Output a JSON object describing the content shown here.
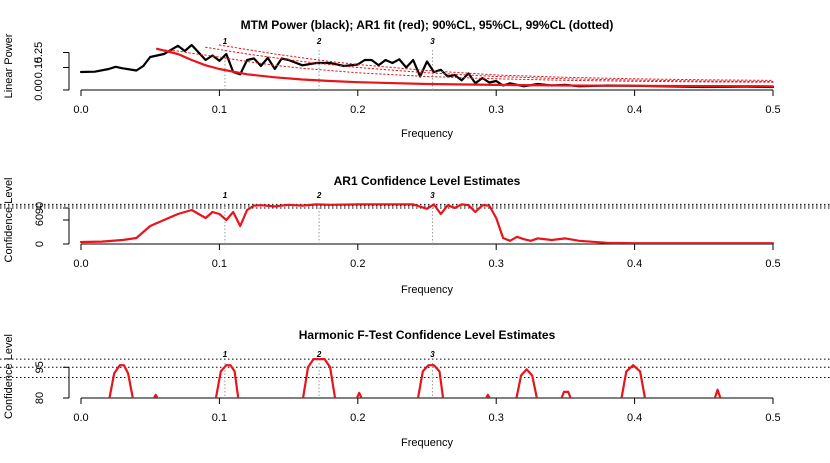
{
  "chart_data": [
    {
      "type": "line",
      "title": "MTM Power (black); AR1 fit (red); 90%CL, 95%CL, 99%CL (dotted)",
      "xlabel": "Frequency",
      "ylabel": "Linear Power",
      "xlim": [
        0,
        0.5
      ],
      "ylim": [
        0,
        0.32
      ],
      "xticks": [
        "0.0",
        "0.1",
        "0.2",
        "0.3",
        "0.4",
        "0.5"
      ],
      "yticks": [
        "0.00",
        "0.15",
        "0.25"
      ],
      "ytick_values": [
        0,
        0.15,
        0.25
      ],
      "grid": false,
      "peak_markers": [
        {
          "label": "1",
          "x": 0.104
        },
        {
          "label": "2",
          "x": 0.172
        },
        {
          "label": "3",
          "x": 0.254
        }
      ],
      "series": [
        {
          "role": "mtm-power",
          "color": "#000000",
          "x": [
            0.0,
            0.01,
            0.02,
            0.025,
            0.03,
            0.04,
            0.045,
            0.05,
            0.06,
            0.07,
            0.075,
            0.08,
            0.09,
            0.095,
            0.1,
            0.105,
            0.11,
            0.115,
            0.12,
            0.125,
            0.13,
            0.135,
            0.14,
            0.145,
            0.15,
            0.16,
            0.17,
            0.18,
            0.19,
            0.2,
            0.205,
            0.21,
            0.215,
            0.22,
            0.225,
            0.23,
            0.235,
            0.24,
            0.245,
            0.25,
            0.255,
            0.26,
            0.265,
            0.27,
            0.275,
            0.28,
            0.285,
            0.29,
            0.295,
            0.3,
            0.305,
            0.31,
            0.32,
            0.33,
            0.34,
            0.35,
            0.36,
            0.38,
            0.4,
            0.42,
            0.45,
            0.48,
            0.5
          ],
          "y": [
            0.12,
            0.122,
            0.14,
            0.155,
            0.145,
            0.13,
            0.16,
            0.22,
            0.24,
            0.295,
            0.26,
            0.3,
            0.2,
            0.23,
            0.195,
            0.24,
            0.12,
            0.105,
            0.2,
            0.21,
            0.16,
            0.215,
            0.14,
            0.21,
            0.2,
            0.165,
            0.18,
            0.18,
            0.16,
            0.17,
            0.2,
            0.2,
            0.165,
            0.2,
            0.18,
            0.205,
            0.15,
            0.2,
            0.09,
            0.19,
            0.12,
            0.135,
            0.09,
            0.1,
            0.065,
            0.11,
            0.045,
            0.08,
            0.05,
            0.06,
            0.03,
            0.045,
            0.025,
            0.04,
            0.03,
            0.035,
            0.025,
            0.03,
            0.028,
            0.025,
            0.02,
            0.022,
            0.02
          ]
        },
        {
          "role": "ar1-fit",
          "color": "#e8141b",
          "x": [
            0.055,
            0.07,
            0.08,
            0.09,
            0.1,
            0.12,
            0.14,
            0.16,
            0.18,
            0.2,
            0.25,
            0.3,
            0.35,
            0.4,
            0.45,
            0.5
          ],
          "y": [
            0.275,
            0.24,
            0.2,
            0.165,
            0.14,
            0.105,
            0.085,
            0.07,
            0.06,
            0.052,
            0.04,
            0.034,
            0.03,
            0.028,
            0.026,
            0.025
          ]
        },
        {
          "role": "cl-90",
          "color": "#e8141b",
          "dash": true,
          "x": [
            0.055,
            0.07,
            0.08,
            0.1,
            0.12,
            0.14,
            0.16,
            0.18,
            0.2,
            0.25,
            0.3,
            0.35,
            0.4,
            0.45,
            0.5
          ],
          "y": [
            0.27,
            0.26,
            0.245,
            0.22,
            0.19,
            0.165,
            0.145,
            0.13,
            0.115,
            0.09,
            0.075,
            0.065,
            0.058,
            0.054,
            0.052
          ]
        },
        {
          "role": "cl-95",
          "color": "#e8141b",
          "dash": true,
          "x": [
            0.09,
            0.1,
            0.12,
            0.14,
            0.16,
            0.18,
            0.2,
            0.25,
            0.3,
            0.35,
            0.4,
            0.45,
            0.5
          ],
          "y": [
            0.285,
            0.27,
            0.24,
            0.215,
            0.19,
            0.17,
            0.15,
            0.115,
            0.09,
            0.075,
            0.066,
            0.06,
            0.057
          ]
        },
        {
          "role": "cl-99",
          "color": "#e8141b",
          "dash": true,
          "x": [
            0.1,
            0.12,
            0.14,
            0.16,
            0.18,
            0.2,
            0.25,
            0.3,
            0.35,
            0.4,
            0.45,
            0.5
          ],
          "y": [
            0.3,
            0.27,
            0.24,
            0.215,
            0.19,
            0.17,
            0.13,
            0.1,
            0.085,
            0.075,
            0.068,
            0.064
          ]
        }
      ]
    },
    {
      "type": "line",
      "title": "AR1 Confidence Level Estimates",
      "xlabel": "Frequency",
      "ylabel": "Confidence Level",
      "xlim": [
        0,
        0.5
      ],
      "ylim": [
        0,
        120
      ],
      "xticks": [
        "0.0",
        "0.1",
        "0.2",
        "0.3",
        "0.4",
        "0.5"
      ],
      "yticks": [
        "0",
        "60",
        "90"
      ],
      "ytick_values": [
        0,
        60,
        90
      ],
      "reference_lines": [
        90,
        95,
        99
      ],
      "grid": false,
      "peak_markers": [
        {
          "label": "1",
          "x": 0.104
        },
        {
          "label": "2",
          "x": 0.172
        },
        {
          "label": "3",
          "x": 0.254
        }
      ],
      "series": [
        {
          "role": "ar1-confidence",
          "color": "#e8141b",
          "x": [
            0.0,
            0.015,
            0.03,
            0.04,
            0.05,
            0.06,
            0.07,
            0.08,
            0.09,
            0.095,
            0.1,
            0.105,
            0.11,
            0.115,
            0.12,
            0.125,
            0.13,
            0.14,
            0.15,
            0.16,
            0.17,
            0.18,
            0.2,
            0.22,
            0.24,
            0.25,
            0.255,
            0.26,
            0.265,
            0.27,
            0.275,
            0.28,
            0.285,
            0.29,
            0.295,
            0.3,
            0.305,
            0.31,
            0.315,
            0.32,
            0.325,
            0.33,
            0.34,
            0.35,
            0.36,
            0.38,
            0.4,
            0.45,
            0.5
          ],
          "y": [
            5,
            6,
            10,
            15,
            45,
            60,
            75,
            85,
            65,
            80,
            75,
            60,
            80,
            45,
            85,
            96,
            97,
            94,
            98,
            96,
            99,
            98,
            99,
            99,
            99,
            88,
            99,
            75,
            97,
            90,
            99,
            97,
            80,
            97,
            96,
            65,
            15,
            8,
            18,
            12,
            8,
            14,
            10,
            14,
            8,
            3,
            2,
            2,
            2
          ]
        }
      ]
    },
    {
      "type": "line",
      "title": "Harmonic F-Test Confidence Level Estimates",
      "xlabel": "Frequency",
      "ylabel": "Confidence Level",
      "xlim": [
        0,
        0.5
      ],
      "ylim": [
        80,
        101
      ],
      "xticks": [
        "0.0",
        "0.1",
        "0.2",
        "0.3",
        "0.4",
        "0.5"
      ],
      "yticks": [
        "80",
        "95"
      ],
      "ytick_values": [
        80,
        95
      ],
      "reference_lines": [
        90,
        95,
        99
      ],
      "grid": false,
      "peak_markers": [
        {
          "label": "1",
          "x": 0.104
        },
        {
          "label": "2",
          "x": 0.172
        },
        {
          "label": "3",
          "x": 0.254
        }
      ],
      "series": [
        {
          "role": "f-test-confidence",
          "color": "#e8141b",
          "segments": [
            {
              "x": [
                0.02,
                0.024,
                0.028,
                0.031,
                0.034,
                0.038
              ],
              "y": [
                78,
                92,
                96,
                96,
                92,
                78
              ]
            },
            {
              "x": [
                0.051,
                0.054,
                0.057
              ],
              "y": [
                78,
                81.5,
                78
              ]
            },
            {
              "x": [
                0.097,
                0.101,
                0.105,
                0.108,
                0.111,
                0.114
              ],
              "y": [
                78,
                93,
                96,
                96,
                93,
                78
              ]
            },
            {
              "x": [
                0.16,
                0.164,
                0.168,
                0.172,
                0.176,
                0.18,
                0.184
              ],
              "y": [
                78,
                95,
                99,
                99,
                99,
                95,
                78
              ]
            },
            {
              "x": [
                0.198,
                0.201,
                0.204
              ],
              "y": [
                78,
                82.5,
                78
              ]
            },
            {
              "x": [
                0.243,
                0.247,
                0.251,
                0.255,
                0.259,
                0.262
              ],
              "y": [
                78,
                93,
                96,
                96,
                93,
                78
              ]
            },
            {
              "x": [
                0.291,
                0.294,
                0.297
              ],
              "y": [
                78,
                81.5,
                78
              ]
            },
            {
              "x": [
                0.314,
                0.318,
                0.322,
                0.326,
                0.33
              ],
              "y": [
                78,
                91,
                94,
                91,
                78
              ]
            },
            {
              "x": [
                0.346,
                0.349,
                0.352,
                0.355
              ],
              "y": [
                78,
                83,
                83,
                78
              ]
            },
            {
              "x": [
                0.39,
                0.394,
                0.399,
                0.404,
                0.408
              ],
              "y": [
                78,
                93,
                96,
                93,
                78
              ]
            },
            {
              "x": [
                0.457,
                0.46,
                0.463
              ],
              "y": [
                78,
                84,
                78
              ]
            }
          ]
        }
      ]
    }
  ]
}
